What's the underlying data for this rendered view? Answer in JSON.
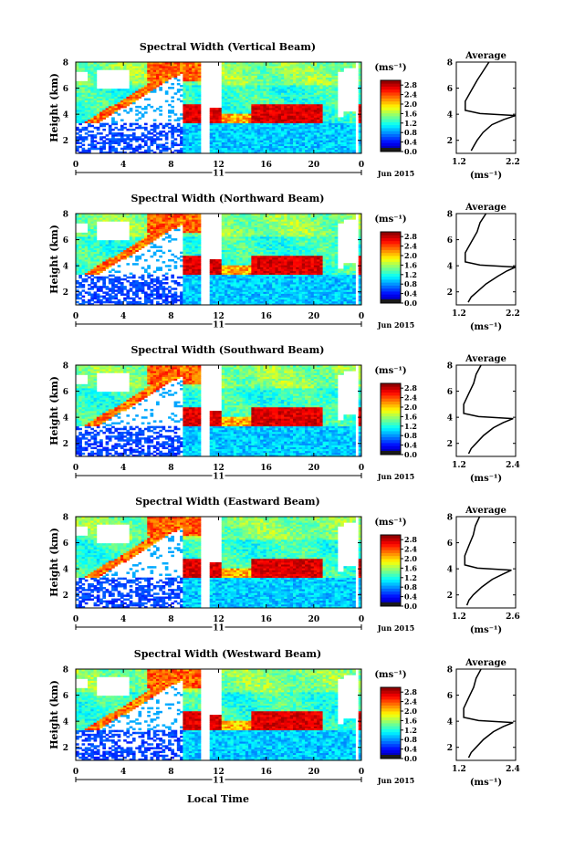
{
  "figure": {
    "xlabel": "Local Time",
    "date_label": "Jun 2015",
    "day_label": "11",
    "cbar_units": "(ms⁻¹)",
    "avg_title": "Average",
    "avg_xlabel": "(ms⁻¹)",
    "ylabel": "Height (km)"
  },
  "chart_data": [
    {
      "type": "heatmap",
      "title": "Spectral Width (Vertical Beam)",
      "ylabel": "Height (km)",
      "x_ticks": [
        "0",
        "4",
        "8",
        "12",
        "16",
        "20",
        "0"
      ],
      "y_ticks": [
        "2",
        "4",
        "6",
        "8"
      ],
      "xlim_hours": [
        0,
        24
      ],
      "ylim_km": [
        1,
        8
      ],
      "colorbar_ticks": [
        "0.0",
        "0.4",
        "0.8",
        "1.2",
        "1.6",
        "2.0",
        "2.4",
        "2.8"
      ],
      "colorbar_range": [
        0,
        3.0
      ],
      "average_profile": {
        "title": "Average",
        "x_ticks": [
          "1.2",
          "2.2"
        ],
        "xlim": [
          1.2,
          2.2
        ],
        "y_ticks": [
          "2",
          "4",
          "6",
          "8"
        ],
        "points": [
          [
            1.45,
            1.2
          ],
          [
            1.5,
            1.6
          ],
          [
            1.55,
            2.0
          ],
          [
            1.65,
            2.6
          ],
          [
            1.8,
            3.2
          ],
          [
            2.0,
            3.6
          ],
          [
            2.2,
            3.9
          ],
          [
            1.6,
            4.05
          ],
          [
            1.35,
            4.3
          ],
          [
            1.35,
            5.0
          ],
          [
            1.45,
            5.8
          ],
          [
            1.55,
            6.6
          ],
          [
            1.65,
            7.3
          ],
          [
            1.75,
            8.0
          ]
        ]
      }
    },
    {
      "type": "heatmap",
      "title": "Spectral Width (Northward Beam)",
      "ylabel": "Height (km)",
      "x_ticks": [
        "0",
        "4",
        "8",
        "12",
        "16",
        "20",
        "0"
      ],
      "y_ticks": [
        "2",
        "4",
        "6",
        "8"
      ],
      "xlim_hours": [
        0,
        24
      ],
      "ylim_km": [
        1,
        8
      ],
      "colorbar_ticks": [
        "0.0",
        "0.4",
        "0.8",
        "1.2",
        "1.6",
        "2.0",
        "2.4",
        "2.8"
      ],
      "colorbar_range": [
        0,
        3.0
      ],
      "average_profile": {
        "title": "Average",
        "x_ticks": [
          "1.2",
          "2.2"
        ],
        "xlim": [
          1.2,
          2.2
        ],
        "y_ticks": [
          "2",
          "4",
          "6",
          "8"
        ],
        "points": [
          [
            1.4,
            1.2
          ],
          [
            1.45,
            1.6
          ],
          [
            1.55,
            2.0
          ],
          [
            1.7,
            2.6
          ],
          [
            1.9,
            3.2
          ],
          [
            2.05,
            3.6
          ],
          [
            2.2,
            3.9
          ],
          [
            1.6,
            4.05
          ],
          [
            1.35,
            4.3
          ],
          [
            1.35,
            5.0
          ],
          [
            1.45,
            5.8
          ],
          [
            1.55,
            6.6
          ],
          [
            1.6,
            7.3
          ],
          [
            1.7,
            8.0
          ]
        ]
      }
    },
    {
      "type": "heatmap",
      "title": "Spectral Width (Southward Beam)",
      "ylabel": "Height (km)",
      "x_ticks": [
        "0",
        "4",
        "8",
        "12",
        "16",
        "20",
        "0"
      ],
      "y_ticks": [
        "2",
        "4",
        "6",
        "8"
      ],
      "xlim_hours": [
        0,
        24
      ],
      "ylim_km": [
        1,
        8
      ],
      "colorbar_ticks": [
        "0.0",
        "0.4",
        "0.8",
        "1.2",
        "1.6",
        "2.0",
        "2.4",
        "2.8"
      ],
      "colorbar_range": [
        0,
        3.0
      ],
      "average_profile": {
        "title": "Average",
        "x_ticks": [
          "1.2",
          "2.4"
        ],
        "xlim": [
          1.2,
          2.4
        ],
        "y_ticks": [
          "2",
          "4",
          "6",
          "8"
        ],
        "points": [
          [
            1.45,
            1.2
          ],
          [
            1.5,
            1.6
          ],
          [
            1.6,
            2.0
          ],
          [
            1.75,
            2.6
          ],
          [
            1.95,
            3.2
          ],
          [
            2.15,
            3.6
          ],
          [
            2.35,
            3.9
          ],
          [
            1.65,
            4.05
          ],
          [
            1.35,
            4.3
          ],
          [
            1.35,
            5.0
          ],
          [
            1.45,
            5.8
          ],
          [
            1.55,
            6.6
          ],
          [
            1.6,
            7.3
          ],
          [
            1.7,
            8.0
          ]
        ]
      }
    },
    {
      "type": "heatmap",
      "title": "Spectral Width (Eastward Beam)",
      "ylabel": "Height (km)",
      "x_ticks": [
        "0",
        "4",
        "8",
        "12",
        "16",
        "20",
        "0"
      ],
      "y_ticks": [
        "2",
        "4",
        "6",
        "8"
      ],
      "xlim_hours": [
        0,
        24
      ],
      "ylim_km": [
        1,
        8
      ],
      "colorbar_ticks": [
        "0.0",
        "0.4",
        "0.8",
        "1.2",
        "1.6",
        "2.0",
        "2.4",
        "2.8"
      ],
      "colorbar_range": [
        0,
        3.0
      ],
      "average_profile": {
        "title": "Average",
        "x_ticks": [
          "1.2",
          "2.6"
        ],
        "xlim": [
          1.2,
          2.6
        ],
        "y_ticks": [
          "2",
          "4",
          "6",
          "8"
        ],
        "points": [
          [
            1.45,
            1.2
          ],
          [
            1.5,
            1.6
          ],
          [
            1.6,
            2.0
          ],
          [
            1.8,
            2.6
          ],
          [
            2.05,
            3.2
          ],
          [
            2.3,
            3.6
          ],
          [
            2.5,
            3.9
          ],
          [
            1.7,
            4.05
          ],
          [
            1.4,
            4.3
          ],
          [
            1.4,
            5.0
          ],
          [
            1.5,
            5.8
          ],
          [
            1.6,
            6.6
          ],
          [
            1.65,
            7.3
          ],
          [
            1.75,
            8.0
          ]
        ]
      }
    },
    {
      "type": "heatmap",
      "title": "Spectral Width (Westward Beam)",
      "ylabel": "Height (km)",
      "x_ticks": [
        "0",
        "4",
        "8",
        "12",
        "16",
        "20",
        "0"
      ],
      "y_ticks": [
        "2",
        "4",
        "6",
        "8"
      ],
      "xlim_hours": [
        0,
        24
      ],
      "ylim_km": [
        1,
        8
      ],
      "colorbar_ticks": [
        "0.0",
        "0.4",
        "0.8",
        "1.2",
        "1.6",
        "2.0",
        "2.4",
        "2.8"
      ],
      "colorbar_range": [
        0,
        3.0
      ],
      "average_profile": {
        "title": "Average",
        "x_ticks": [
          "1.2",
          "2.4"
        ],
        "xlim": [
          1.2,
          2.4
        ],
        "y_ticks": [
          "2",
          "4",
          "6",
          "8"
        ],
        "points": [
          [
            1.45,
            1.2
          ],
          [
            1.5,
            1.6
          ],
          [
            1.6,
            2.0
          ],
          [
            1.75,
            2.6
          ],
          [
            1.95,
            3.2
          ],
          [
            2.15,
            3.6
          ],
          [
            2.35,
            3.9
          ],
          [
            1.65,
            4.05
          ],
          [
            1.35,
            4.3
          ],
          [
            1.35,
            5.0
          ],
          [
            1.45,
            5.8
          ],
          [
            1.55,
            6.6
          ],
          [
            1.6,
            7.3
          ],
          [
            1.7,
            8.0
          ]
        ]
      }
    }
  ]
}
